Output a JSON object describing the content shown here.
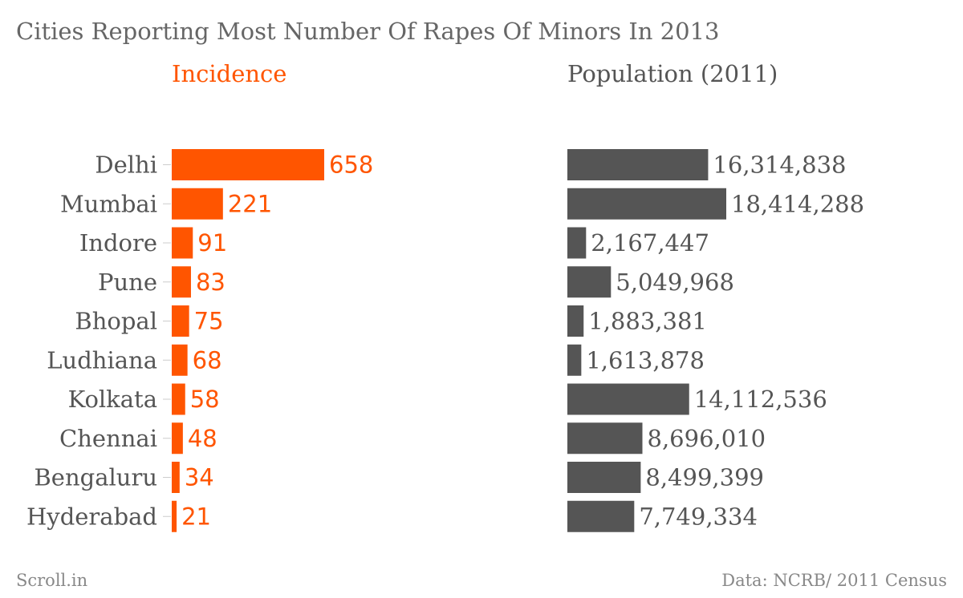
{
  "chart_data": {
    "type": "bar",
    "title": "Cities Reporting Most Number Of Rapes Of Minors In 2013",
    "categories": [
      "Delhi",
      "Mumbai",
      "Indore",
      "Pune",
      "Bhopal",
      "Ludhiana",
      "Kolkata",
      "Chennai",
      "Bengaluru",
      "Hyderabad"
    ],
    "panels": [
      {
        "title": "Incidence",
        "color": "#ff5500",
        "values": [
          658,
          221,
          91,
          83,
          75,
          68,
          58,
          48,
          34,
          21
        ],
        "labels": [
          "658",
          "221",
          "91",
          "83",
          "75",
          "68",
          "58",
          "48",
          "34",
          "21"
        ]
      },
      {
        "title": "Population (2011)",
        "color": "#555555",
        "values": [
          16314838,
          18414288,
          2167447,
          5049968,
          1883381,
          1613878,
          14112536,
          8696010,
          8499399,
          7749334
        ],
        "labels": [
          "16,314,838",
          "18,414,288",
          "2,167,447",
          "5,049,968",
          "1,883,381",
          "1,613,878",
          "14,112,536",
          "8,696,010",
          "8,499,399",
          "7,749,334"
        ]
      }
    ]
  },
  "footer": {
    "source_left": "Scroll.in",
    "source_right": "Data: NCRB/ 2011 Census"
  },
  "colors": {
    "title_text": "#666666",
    "category_text": "#555555",
    "accent": "#ff5500",
    "population_bar": "#555555"
  }
}
